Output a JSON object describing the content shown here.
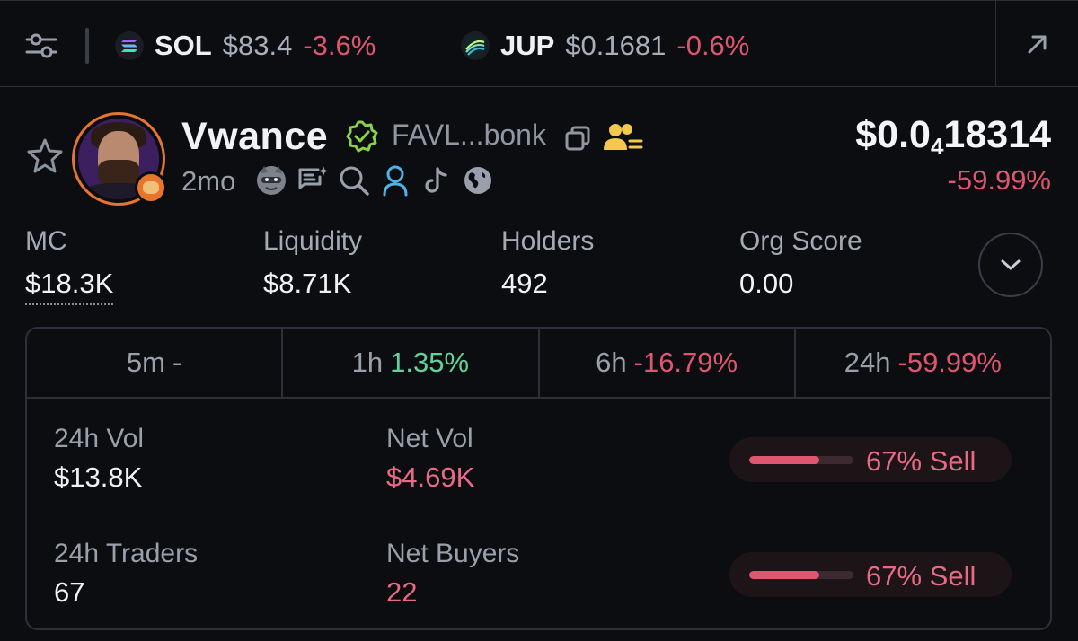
{
  "ticker_bar": {
    "items": [
      {
        "symbol": "SOL",
        "price": "$83.4",
        "change": "-3.6%"
      },
      {
        "symbol": "JUP",
        "price": "$0.1681",
        "change": "-0.6%"
      }
    ]
  },
  "token": {
    "name": "Vwance",
    "address": "FAVL...bonk",
    "age": "2mo",
    "price_prefix": "$0.0",
    "price_zero_count": "4",
    "price_digits": "18314",
    "price_change": "-59.99%"
  },
  "stats": [
    {
      "label": "MC",
      "value": "$18.3K"
    },
    {
      "label": "Liquidity",
      "value": "$8.71K"
    },
    {
      "label": "Holders",
      "value": "492"
    },
    {
      "label": "Org Score",
      "value": "0.00"
    }
  ],
  "tabs": [
    {
      "label": "5m",
      "value": "-"
    },
    {
      "label": "1h",
      "value": "1.35%"
    },
    {
      "label": "6h",
      "value": "-16.79%"
    },
    {
      "label": "24h",
      "value": "-59.99%"
    }
  ],
  "metrics": {
    "vol_24h": {
      "label": "24h Vol",
      "value": "$13.8K"
    },
    "net_vol": {
      "label": "Net Vol",
      "value": "$4.69K"
    },
    "traders_24h": {
      "label": "24h Traders",
      "value": "67"
    },
    "net_buyers": {
      "label": "Net Buyers",
      "value": "22"
    },
    "vol_sell": {
      "label": "67% Sell",
      "fraction": 0.67
    },
    "traders_sell": {
      "label": "67% Sell",
      "fraction": 0.67
    }
  },
  "colors": {
    "background": "#0b0d11",
    "positive": "#63d29a",
    "negative": "#e0556f",
    "avatar_ring": "#e8752c",
    "verified": "#8bd14a",
    "community": "#f2c94c",
    "user_link": "#4fb3e8"
  },
  "icons": [
    "filter-icon",
    "solana-icon",
    "jupiter-icon",
    "external-link-icon",
    "star-icon",
    "verified-icon",
    "copy-icon",
    "community-icon",
    "raccoon-icon",
    "chat-icon",
    "search-icon",
    "user-icon",
    "tiktok-icon",
    "globe-icon",
    "chevron-down-icon"
  ]
}
